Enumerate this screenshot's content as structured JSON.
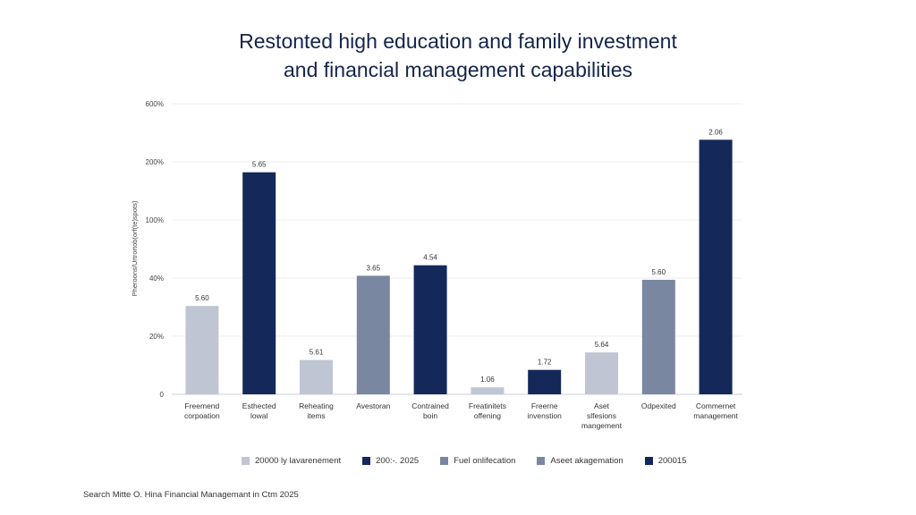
{
  "title": {
    "line1": "Restonted high education and family investment",
    "line2": "and financial management capabilities"
  },
  "chart_data": {
    "type": "bar",
    "ylabel": "Pheroons/Urtrortob(orf(te)spots)",
    "y_ticks": [
      "0",
      "20%",
      "40%",
      "100%",
      "200%",
      "600%"
    ],
    "ylim": [
      0,
      5
    ],
    "categories": [
      "Freemend corpoation",
      "Esthected lowal",
      "Reheating items",
      "Avestoran",
      "Contrained boin",
      "Freatinitets offening",
      "Freerne invenstion",
      "Aset slfesions mangement",
      "Odpexited",
      "Commernet management"
    ],
    "values": [
      1.52,
      3.82,
      0.59,
      2.04,
      2.22,
      0.12,
      0.42,
      0.72,
      1.97,
      4.38
    ],
    "value_labels": [
      "5.60",
      "5.65",
      "5.61",
      "3.65",
      "4.54",
      "1.06",
      "1.72",
      "5.64",
      "5.60",
      "2.06"
    ],
    "bar_colors": [
      "#bfc5d2",
      "#14295a",
      "#bfc5d2",
      "#7a87a0",
      "#14295a",
      "#bfc5d2",
      "#14295a",
      "#bfc5d2",
      "#7a87a0",
      "#14295a"
    ],
    "grid": true,
    "legend": [
      {
        "label": "20000 ly lavarenement",
        "color": "#bfc5d2"
      },
      {
        "label": "200:-. 2025",
        "color": "#14295a"
      },
      {
        "label": "Fuel onlifecation",
        "color": "#7a87a0"
      },
      {
        "label": "Aseet akagemation",
        "color": "#7a87a0"
      },
      {
        "label": "200015",
        "color": "#14295a"
      }
    ],
    "legend_placement": "bottom"
  },
  "source": "Search Mitte O. Hina Financial Managemant in Ctm 2025"
}
